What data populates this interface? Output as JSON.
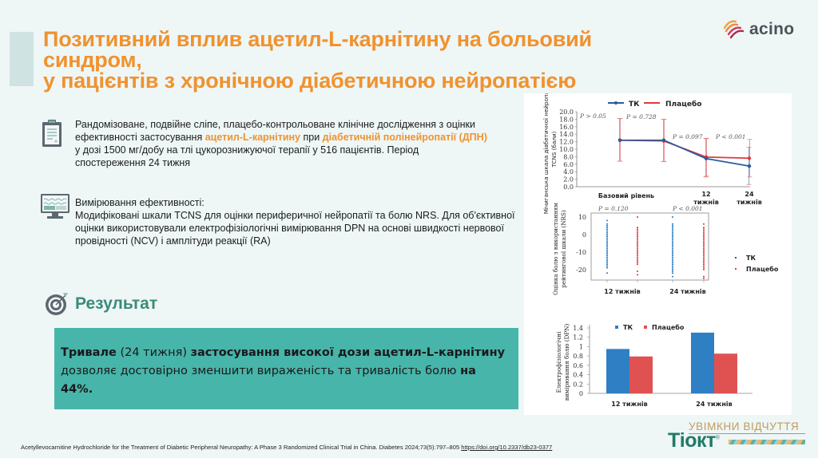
{
  "header": {
    "title_lines": [
      "Позитивний вплив ацетил-L-карнітину на больовий",
      "синдром,",
      "у пацієнтів з хронічною діабетичною нейропатією"
    ],
    "logo_text": "acino"
  },
  "study": {
    "icon": "clipboard-icon",
    "text_a": "Рандомізоване, подвійне сліпе, плацебо-контрольоване клінічне дослідження з оцінки ефективності застосування ",
    "highlight_1": "ацетил-L-карнітину",
    "text_b": " при ",
    "highlight_2": "діабетичній полінейропатії (ДПН)",
    "text_c": " у дозі 1500 мг/добу на тлі цукорознижуючої терапії у 516 пацієнтів. Період спостереження 24 тижня"
  },
  "measurement": {
    "icon": "monitor-chart-icon",
    "heading": "Вимірювання ефективності:",
    "text": "Модифіковані шкали TCNS для оцінки периферичної нейропатії та болю NRS. Для об'єктивної оцінки використовували електрофізіологічні вимірювання DPN на основі швидкості нервової провідності (NCV) і амплітуди реакції (RA)"
  },
  "result": {
    "icon": "target-icon",
    "title": "Результат",
    "b1": "Тривале",
    "t1": " (24 тижня) ",
    "b2": "застосування високої дози ацетил-L-карнітину",
    "t2": " дозволяє достовірно зменшити вираженість та тривалість болю ",
    "b3": "на 44%."
  },
  "brand": {
    "slogan": "УВІМКНИ ВІДЧУТТЯ",
    "name": "Тіокт",
    "reg": "®"
  },
  "footnote": {
    "text": "Acetyllevocarnitine Hydrochloride for the Treatment of Diabetic Peripheral Neuropathy: A Phase 3 Randomized Clinical Trial in China. Diabetes 2024;73(5):797–805 ",
    "link": "https://doi.org/10.2337/db23-0377"
  },
  "colors": {
    "orange": "#f0922e",
    "teal_box": "#47b5aa",
    "teal_text": "#3a8b78",
    "series_tk": "#2a5a9e",
    "series_placebo": "#e03a3a",
    "bar_tk": "#2f7fc4",
    "bar_placebo": "#e05252"
  },
  "chart_data": [
    {
      "type": "line",
      "title": "",
      "ylabel": "Мічиганська шкала діабетичної нейропатії TCNS (бали)",
      "xlabel": "",
      "ylim": [
        0,
        20
      ],
      "yticks": [
        "0.0",
        "2.0",
        "4.0",
        "6.0",
        "8.0",
        "10.0",
        "12.0",
        "14.0",
        "16.0",
        "18.0",
        "20.0"
      ],
      "categories": [
        "Базовий рівень",
        "",
        "12 тижнів",
        "24 тижнів"
      ],
      "category_labels": [
        "Базовий рівень",
        "12",
        "тижнів",
        "24",
        "тижнів"
      ],
      "legend": [
        "ТК",
        "Плацебо"
      ],
      "series": [
        {
          "name": "ТК",
          "values": [
            12.4,
            12.4,
            7.5,
            5.5
          ],
          "err_low": [
            6.8,
            6.7,
            2.6,
            0.6
          ],
          "err_high": [
            18.2,
            18.0,
            12.8,
            10.5
          ]
        },
        {
          "name": "Плацебо",
          "values": [
            12.4,
            12.2,
            7.9,
            7.6
          ],
          "err_low": [
            6.8,
            6.7,
            2.8,
            2.6
          ],
          "err_high": [
            18.2,
            18.0,
            12.9,
            12.6
          ]
        }
      ],
      "annotations": [
        "P > 0.05",
        "P = 0.728",
        "P = 0.097",
        "P < 0.001"
      ]
    },
    {
      "type": "scatter",
      "ylabel": "Оцінка болю з використанням рейтингової шкали (NRS)",
      "ylim": [
        -26,
        11
      ],
      "yticks": [
        "10",
        "0",
        "-10",
        "-20"
      ],
      "categories": [
        "12 тижнів",
        "24 тижнів"
      ],
      "legend": [
        "ТК",
        "Плацебо"
      ],
      "series": [
        {
          "name": "ТК",
          "ranges": [
            {
              "x": "12 тижнів",
              "min": -22,
              "max": 8,
              "outliers_low": [
                -22
              ],
              "outliers_high": [
                8
              ]
            },
            {
              "x": "24 тижнів",
              "min": -24,
              "max": 10,
              "outliers_low": [
                -24,
                -22,
                -21
              ],
              "outliers_high": [
                10
              ]
            }
          ]
        },
        {
          "name": "Плацебо",
          "ranges": [
            {
              "x": "12 тижнів",
              "min": -23,
              "max": 10,
              "outliers_low": [
                -21,
                -23
              ],
              "outliers_high": [
                10
              ]
            },
            {
              "x": "24 тижнів",
              "min": -25,
              "max": 6,
              "outliers_low": [
                -24,
                -25
              ],
              "outliers_high": [
                6
              ]
            }
          ]
        }
      ],
      "annotations": [
        "P = 0.120",
        "P < 0.001"
      ]
    },
    {
      "type": "bar",
      "ylabel": "Електрофізіологічні вимірювання болю (DPN)",
      "ylim": [
        0,
        1.4
      ],
      "yticks": [
        "0",
        "0.2",
        "0.4",
        "0.6",
        "0.8",
        "1",
        "1.2",
        "1.4"
      ],
      "categories": [
        "12 тижнів",
        "24 тижнів"
      ],
      "legend": [
        "ТК",
        "Плацебо"
      ],
      "series": [
        {
          "name": "ТК",
          "values": [
            0.95,
            1.3
          ]
        },
        {
          "name": "Плацебо",
          "values": [
            0.79,
            0.85
          ]
        }
      ]
    }
  ]
}
